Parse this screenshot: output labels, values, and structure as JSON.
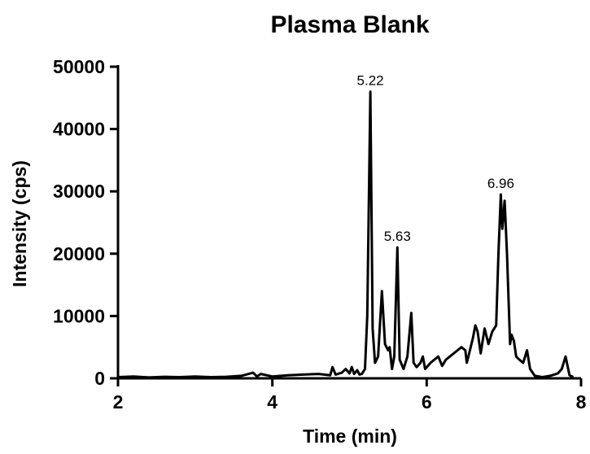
{
  "chart_data": {
    "type": "line",
    "title": "Plasma Blank",
    "xlabel": "Time (min)",
    "ylabel": "Intensity (cps)",
    "xlim": [
      2,
      8
    ],
    "ylim": [
      0,
      50000
    ],
    "x_ticks": [
      2,
      4,
      6,
      8
    ],
    "x_tick_labels": [
      "2",
      "4",
      "6",
      "8"
    ],
    "y_ticks": [
      0,
      10000,
      20000,
      30000,
      40000,
      50000
    ],
    "y_tick_labels": [
      "0",
      "10000",
      "20000",
      "30000",
      "40000",
      "50000"
    ],
    "grid": false,
    "legend": "none",
    "line_color": "#000000",
    "annotations": [
      {
        "text": "5.22",
        "x": 5.27,
        "y": 46000
      },
      {
        "text": "5.63",
        "x": 5.62,
        "y": 21000
      },
      {
        "text": "6.96",
        "x": 6.96,
        "y": 29500
      }
    ],
    "series": [
      {
        "x": [
          2.0,
          2.2,
          2.4,
          2.6,
          2.8,
          3.0,
          3.2,
          3.4,
          3.6,
          3.75,
          3.8,
          3.85,
          4.0,
          4.2,
          4.4,
          4.6,
          4.75,
          4.78,
          4.82,
          4.9,
          4.95,
          5.0,
          5.03,
          5.06,
          5.1,
          5.13,
          5.16,
          5.2,
          5.23,
          5.27,
          5.3,
          5.33,
          5.37,
          5.42,
          5.46,
          5.5,
          5.52,
          5.55,
          5.58,
          5.62,
          5.65,
          5.7,
          5.75,
          5.8,
          5.83,
          5.87,
          5.92,
          5.95,
          5.98,
          6.05,
          6.1,
          6.15,
          6.2,
          6.25,
          6.3,
          6.4,
          6.45,
          6.5,
          6.52,
          6.55,
          6.6,
          6.63,
          6.66,
          6.7,
          6.75,
          6.8,
          6.85,
          6.9,
          6.93,
          6.96,
          6.98,
          7.01,
          7.04,
          7.08,
          7.1,
          7.13,
          7.16,
          7.2,
          7.25,
          7.3,
          7.34,
          7.4,
          7.5,
          7.6,
          7.7,
          7.75,
          7.8,
          7.85,
          7.9
        ],
        "y": [
          200,
          300,
          150,
          250,
          200,
          300,
          200,
          250,
          400,
          900,
          300,
          700,
          300,
          500,
          600,
          700,
          500,
          1800,
          600,
          900,
          1500,
          800,
          1800,
          700,
          1300,
          600,
          700,
          1500,
          10000,
          46000,
          8000,
          2500,
          3500,
          14000,
          5500,
          4500,
          5000,
          1500,
          3500,
          21000,
          3000,
          1500,
          3500,
          10500,
          2500,
          1800,
          2500,
          3500,
          1500,
          2500,
          3000,
          3500,
          2000,
          3000,
          3500,
          4500,
          5000,
          4500,
          2500,
          4000,
          6500,
          8500,
          7500,
          4000,
          8000,
          5500,
          7500,
          8500,
          20000,
          29500,
          24000,
          28500,
          20000,
          5500,
          7000,
          6000,
          3500,
          3000,
          2500,
          4500,
          1500,
          400,
          200,
          400,
          800,
          1500,
          3500,
          500,
          200
        ]
      }
    ]
  }
}
